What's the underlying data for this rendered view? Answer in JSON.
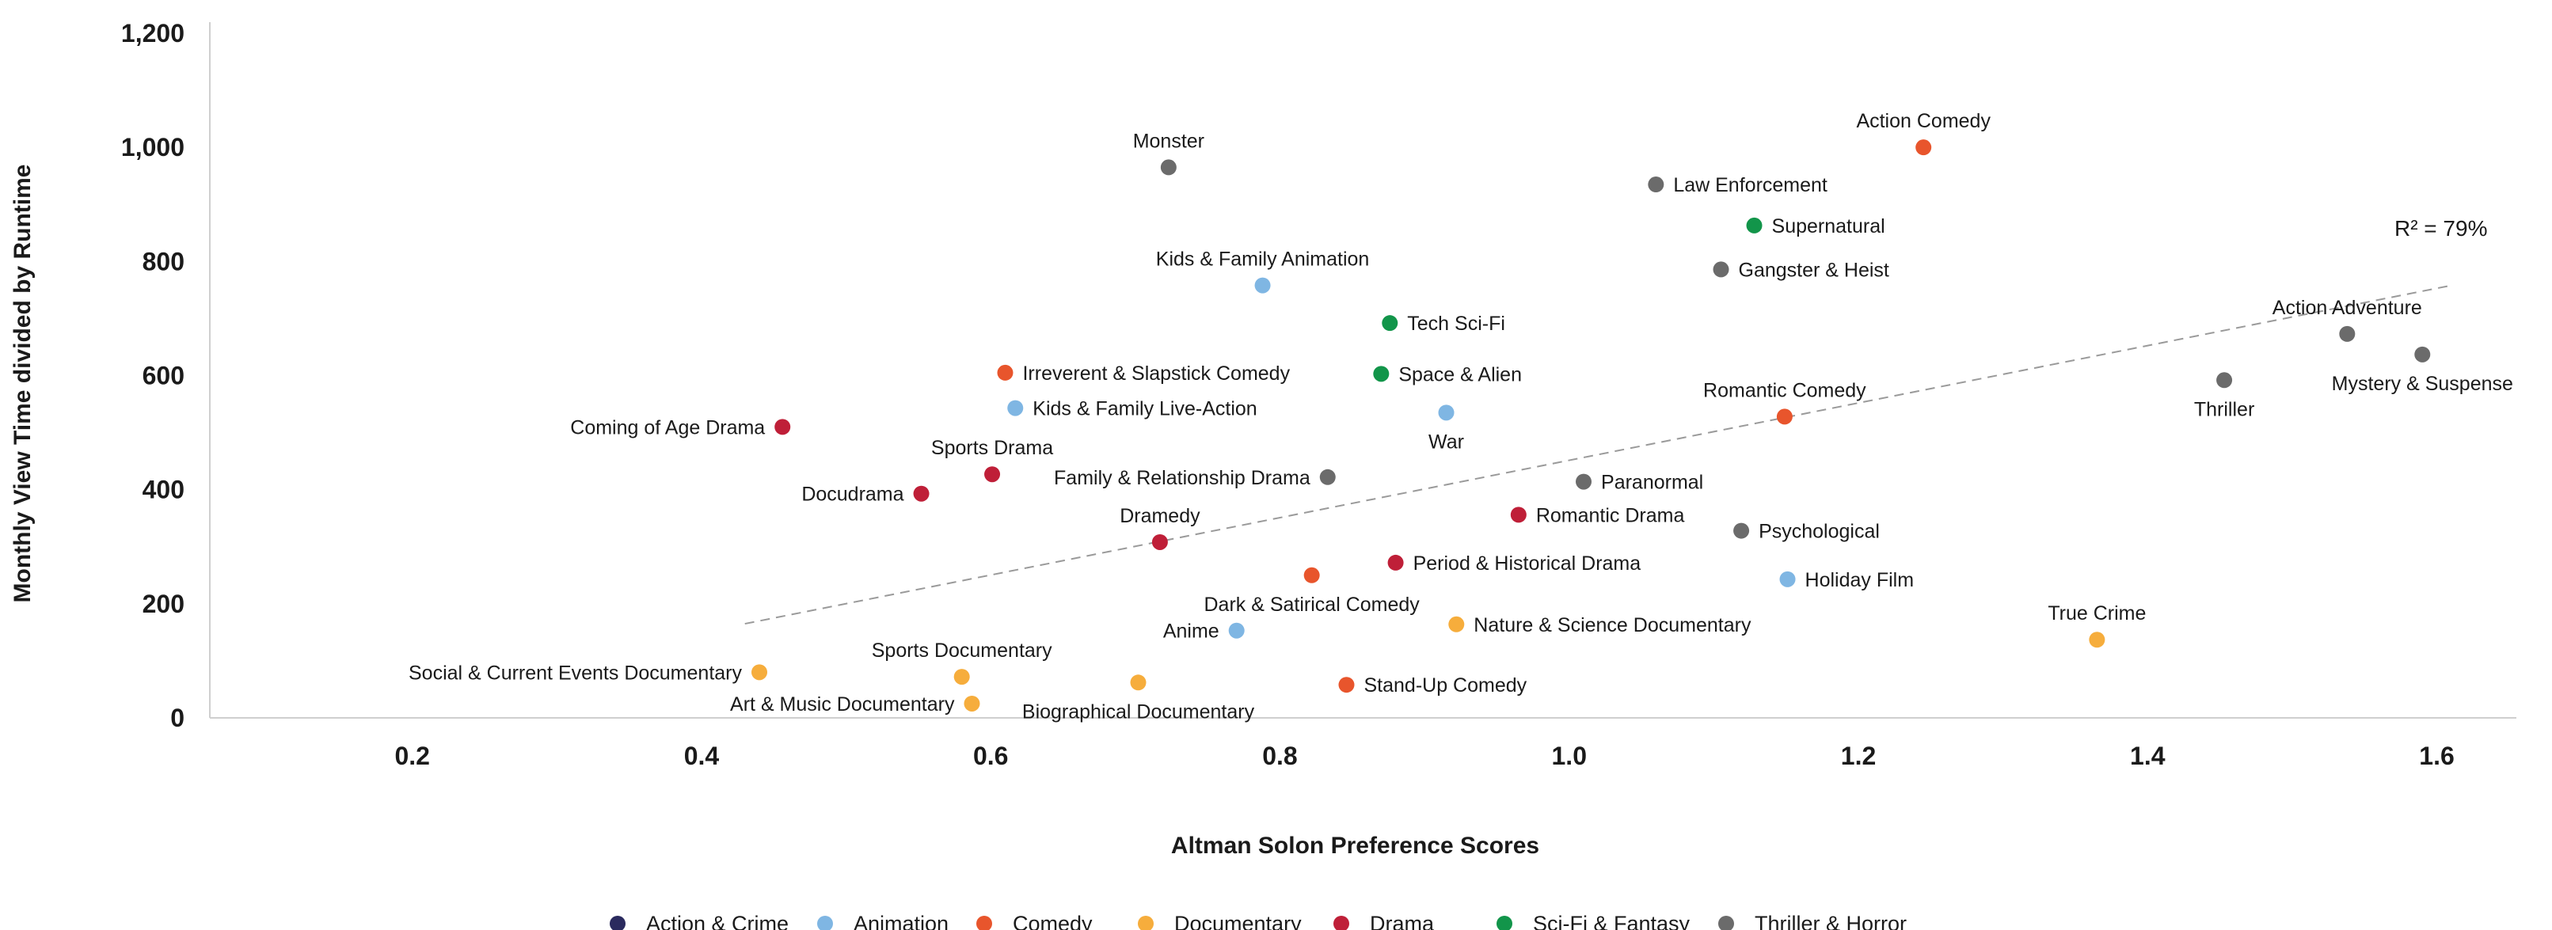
{
  "chart_data": {
    "type": "scatter",
    "xlabel": "Altman Solon Preference Scores",
    "ylabel": "Monthly View Time divided by Runtime",
    "xlim": [
      0.06,
      1.655
    ],
    "ylim": [
      0,
      1200
    ],
    "xticks": [
      0.2,
      0.4,
      0.6,
      0.8,
      1.0,
      1.2,
      1.4,
      1.6
    ],
    "xtick_labels": [
      "0.2",
      "0.4",
      "0.6",
      "0.8",
      "1.0",
      "1.2",
      "1.4",
      "1.6"
    ],
    "yticks": [
      0,
      200,
      400,
      600,
      800,
      1000,
      1200
    ],
    "ytick_labels": [
      "0",
      "200",
      "400",
      "600",
      "800",
      "1,000",
      "1,200"
    ],
    "grid": false,
    "legend_position": "bottom",
    "categories": [
      {
        "name": "Action & Crime",
        "color": "#2a2a5e"
      },
      {
        "name": "Animation",
        "color": "#7fb6e3"
      },
      {
        "name": "Comedy",
        "color": "#e8552c"
      },
      {
        "name": "Documentary",
        "color": "#f6ad3c"
      },
      {
        "name": "Drama",
        "color": "#bf1f38"
      },
      {
        "name": "Sci-Fi & Fantasy",
        "color": "#12954a"
      },
      {
        "name": "Thriller & Horror",
        "color": "#6b6b6b"
      }
    ],
    "points": [
      {
        "label": "Monster",
        "x": 0.723,
        "y": 965,
        "category": "Thriller & Horror",
        "label_pos": "top"
      },
      {
        "label": "Action Comedy",
        "x": 1.245,
        "y": 1000,
        "category": "Comedy",
        "label_pos": "top"
      },
      {
        "label": "Law Enforcement",
        "x": 1.06,
        "y": 935,
        "category": "Thriller & Horror",
        "label_pos": "right"
      },
      {
        "label": "Supernatural",
        "x": 1.128,
        "y": 863,
        "category": "Sci-Fi & Fantasy",
        "label_pos": "right"
      },
      {
        "label": "Gangster & Heist",
        "x": 1.105,
        "y": 786,
        "category": "Thriller & Horror",
        "label_pos": "right"
      },
      {
        "label": "Kids & Family Animation",
        "x": 0.788,
        "y": 758,
        "category": "Animation",
        "label_pos": "top"
      },
      {
        "label": "Tech Sci-Fi",
        "x": 0.876,
        "y": 692,
        "category": "Sci-Fi & Fantasy",
        "label_pos": "right"
      },
      {
        "label": "Action Adventure",
        "x": 1.538,
        "y": 673,
        "category": "Thriller & Horror",
        "label_pos": "top"
      },
      {
        "label": "Mystery & Suspense",
        "x": 1.59,
        "y": 637,
        "category": "Thriller & Horror",
        "label_pos": "bottom"
      },
      {
        "label": "Thriller",
        "x": 1.453,
        "y": 592,
        "category": "Thriller & Horror",
        "label_pos": "bottom"
      },
      {
        "label": "Irreverent & Slapstick Comedy",
        "x": 0.61,
        "y": 605,
        "category": "Comedy",
        "label_pos": "right"
      },
      {
        "label": "Space & Alien",
        "x": 0.87,
        "y": 603,
        "category": "Sci-Fi & Fantasy",
        "label_pos": "right"
      },
      {
        "label": "Kids & Family Live-Action",
        "x": 0.617,
        "y": 543,
        "category": "Animation",
        "label_pos": "right"
      },
      {
        "label": "War",
        "x": 0.915,
        "y": 535,
        "category": "Animation",
        "label_pos": "bottom"
      },
      {
        "label": "Romantic Comedy",
        "x": 1.149,
        "y": 528,
        "category": "Comedy",
        "label_pos": "top"
      },
      {
        "label": "Coming of Age Drama",
        "x": 0.456,
        "y": 510,
        "category": "Drama",
        "label_pos": "left"
      },
      {
        "label": "Sports Drama",
        "x": 0.601,
        "y": 427,
        "category": "Drama",
        "label_pos": "top"
      },
      {
        "label": "Family & Relationship Drama",
        "x": 0.833,
        "y": 422,
        "category": "Thriller & Horror",
        "label_pos": "left"
      },
      {
        "label": "Paranormal",
        "x": 1.01,
        "y": 414,
        "category": "Thriller & Horror",
        "label_pos": "right"
      },
      {
        "label": "Docudrama",
        "x": 0.552,
        "y": 393,
        "category": "Drama",
        "label_pos": "left"
      },
      {
        "label": "Romantic Drama",
        "x": 0.965,
        "y": 356,
        "category": "Drama",
        "label_pos": "right"
      },
      {
        "label": "Psychological",
        "x": 1.119,
        "y": 328,
        "category": "Thriller & Horror",
        "label_pos": "right"
      },
      {
        "label": "Dramedy",
        "x": 0.717,
        "y": 308,
        "category": "Drama",
        "label_pos": "top"
      },
      {
        "label": "Period & Historical Drama",
        "x": 0.88,
        "y": 272,
        "category": "Drama",
        "label_pos": "right"
      },
      {
        "label": "Dark & Satirical Comedy",
        "x": 0.822,
        "y": 250,
        "category": "Comedy",
        "label_pos": "bottom"
      },
      {
        "label": "Holiday Film",
        "x": 1.151,
        "y": 243,
        "category": "Animation",
        "label_pos": "right"
      },
      {
        "label": "Nature & Science Documentary",
        "x": 0.922,
        "y": 164,
        "category": "Documentary",
        "label_pos": "right"
      },
      {
        "label": "Anime",
        "x": 0.77,
        "y": 153,
        "category": "Animation",
        "label_pos": "left"
      },
      {
        "label": "True Crime",
        "x": 1.365,
        "y": 137,
        "category": "Documentary",
        "label_pos": "top"
      },
      {
        "label": "Social & Current Events Documentary",
        "x": 0.44,
        "y": 80,
        "category": "Documentary",
        "label_pos": "left"
      },
      {
        "label": "Sports Documentary",
        "x": 0.58,
        "y": 72,
        "category": "Documentary",
        "label_pos": "top"
      },
      {
        "label": "Biographical Documentary",
        "x": 0.702,
        "y": 62,
        "category": "Documentary",
        "label_pos": "bottom"
      },
      {
        "label": "Stand-Up Comedy",
        "x": 0.846,
        "y": 58,
        "category": "Comedy",
        "label_pos": "right"
      },
      {
        "label": "Art & Music Documentary",
        "x": 0.587,
        "y": 25,
        "category": "Documentary",
        "label_pos": "left"
      }
    ],
    "trendline": {
      "x": [
        0.43,
        1.61
      ],
      "y": [
        165,
        758
      ],
      "style": "dashed",
      "color": "#9a9a9a"
    },
    "annotations": [
      {
        "text": "R² = 79%",
        "x": 1.635,
        "y": 845
      }
    ]
  }
}
